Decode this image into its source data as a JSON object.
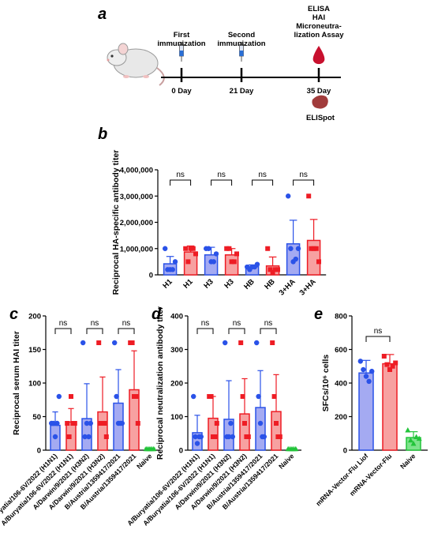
{
  "panel_labels": [
    "a",
    "b",
    "c",
    "d",
    "e"
  ],
  "timeline": {
    "events": [
      {
        "title": [
          "First",
          "immunization"
        ],
        "day": "0 Day"
      },
      {
        "title": [
          "Second",
          "immunization"
        ],
        "day": "21 Day"
      },
      {
        "title": [
          "ELISA",
          "HAI",
          "Microneutra-",
          "lization Assay"
        ],
        "day": "35 Day"
      }
    ],
    "elispot_label": "ELISpot",
    "colors": {
      "blood": "#c8102e",
      "spleen": "#a13b3b",
      "syringe": "#2a6fd6"
    }
  },
  "colors": {
    "blue": "#2a52e8",
    "blue_fill": "#a4aaf2",
    "red": "#ee1c24",
    "red_fill": "#f7a1a1",
    "green": "#22c43a",
    "green_fill": "#7ee38c"
  },
  "chart_data": [
    {
      "id": "b",
      "type": "bar",
      "ylabel": "Reciprocal HA-specific antibody titer",
      "ylim": [
        0,
        4000000
      ],
      "yticks": [
        0,
        1000000,
        2000000,
        3000000,
        4000000
      ],
      "ytick_labels": [
        "0",
        "1,000,000",
        "2,000,000",
        "3,000,000",
        "4,000,000"
      ],
      "categories": [
        "H1",
        "H1",
        "H3",
        "H3",
        "HB",
        "HB",
        "3+HA",
        "3+HA"
      ],
      "colors": [
        "blue",
        "red",
        "blue",
        "red",
        "blue",
        "red",
        "blue",
        "red"
      ],
      "values": [
        420000,
        870000,
        760000,
        760000,
        310000,
        340000,
        1180000,
        1310000
      ],
      "errors": [
        280000,
        230000,
        290000,
        240000,
        70000,
        340000,
        900000,
        800000
      ],
      "points": [
        [
          1000000,
          200000,
          200000,
          200000,
          500000
        ],
        [
          1000000,
          500000,
          1000000,
          1000000,
          800000
        ],
        [
          1000000,
          1000000,
          500000,
          500000,
          800000
        ],
        [
          1000000,
          1000000,
          500000,
          500000,
          800000
        ],
        [
          300000,
          200000,
          300000,
          300000,
          400000
        ],
        [
          1000000,
          200000,
          100000,
          200000,
          200000
        ],
        [
          3000000,
          1000000,
          500000,
          600000,
          1000000
        ],
        [
          3000000,
          1000000,
          1000000,
          1000000,
          500000
        ]
      ],
      "comparisons": [
        {
          "pair": [
            0,
            1
          ],
          "label": "ns"
        },
        {
          "pair": [
            2,
            3
          ],
          "label": "ns"
        },
        {
          "pair": [
            4,
            5
          ],
          "label": "ns"
        },
        {
          "pair": [
            6,
            7
          ],
          "label": "ns"
        }
      ]
    },
    {
      "id": "c",
      "type": "bar",
      "ylabel": "Reciprocal serum HAI titer",
      "ylim": [
        0,
        200
      ],
      "yticks": [
        0,
        50,
        100,
        150,
        200
      ],
      "ytick_labels": [
        "0",
        "50",
        "100",
        "150",
        "200"
      ],
      "categories": [
        "A/Buryatia/106-6V/2022 (H1N1)",
        "A/Buryatia/106-6V/2022 (H1N1)",
        "A/Darwin/9/2021 (H3N2)",
        "A/Darwin/9/2021 (H3N2)",
        "B/Austria/1359417/2021",
        "B/Austria/1359417/2021",
        "Naive"
      ],
      "colors": [
        "blue",
        "red",
        "blue",
        "red",
        "blue",
        "red",
        "green"
      ],
      "values": [
        37,
        42,
        47,
        57,
        70,
        90,
        3
      ],
      "errors": [
        20,
        20,
        52,
        52,
        50,
        58,
        0
      ],
      "points": [
        [
          40,
          40,
          20,
          40,
          80
        ],
        [
          40,
          20,
          80,
          40,
          40
        ],
        [
          160,
          20,
          40,
          20,
          40
        ],
        [
          160,
          40,
          40,
          40,
          20
        ],
        [
          160,
          80,
          40,
          40,
          40
        ],
        [
          160,
          160,
          80,
          80,
          40
        ],
        [
          2,
          2,
          2,
          2,
          2
        ]
      ],
      "comparisons": [
        {
          "pair": [
            0,
            1
          ],
          "label": "ns"
        },
        {
          "pair": [
            2,
            3
          ],
          "label": "ns"
        },
        {
          "pair": [
            4,
            5
          ],
          "label": "ns"
        }
      ]
    },
    {
      "id": "d",
      "type": "bar",
      "ylabel": "Reciprocal neutralization antibody titer",
      "ylim": [
        0,
        400
      ],
      "yticks": [
        0,
        100,
        200,
        300,
        400
      ],
      "ytick_labels": [
        "0",
        "100",
        "200",
        "300",
        "400"
      ],
      "categories": [
        "A/Buryatia/106-6V/2022 (H1N1)",
        "A/Buryatia/106-6V/2022 (H1N1)",
        "A/Darwin/9/2021 (H3N2)",
        "A/Darwin/9/2021 (H3N2)",
        "B/Austria/1359417/2021",
        "B/Austria/1359417/2021",
        "Naive"
      ],
      "colors": [
        "blue",
        "red",
        "blue",
        "red",
        "blue",
        "red",
        "green"
      ],
      "values": [
        52,
        95,
        92,
        108,
        127,
        115,
        4
      ],
      "errors": [
        52,
        65,
        115,
        105,
        110,
        110,
        0
      ],
      "points": [
        [
          160,
          40,
          20,
          40,
          40
        ],
        [
          160,
          160,
          40,
          40,
          80
        ],
        [
          320,
          40,
          40,
          80,
          40
        ],
        [
          320,
          160,
          80,
          40,
          40
        ],
        [
          320,
          160,
          80,
          40,
          40
        ],
        [
          320,
          160,
          80,
          40,
          40
        ],
        [
          4,
          4,
          4,
          4,
          4
        ]
      ],
      "comparisons": [
        {
          "pair": [
            0,
            1
          ],
          "label": "ns"
        },
        {
          "pair": [
            2,
            3
          ],
          "label": "ns"
        },
        {
          "pair": [
            4,
            5
          ],
          "label": "ns"
        }
      ]
    },
    {
      "id": "e",
      "type": "bar",
      "ylabel": "SFCs/10⁶ cells",
      "ylim": [
        0,
        800
      ],
      "yticks": [
        0,
        200,
        400,
        600,
        800
      ],
      "ytick_labels": [
        "0",
        "200",
        "400",
        "600",
        "800"
      ],
      "categories": [
        "mRNA-Vector-Flu Liof",
        "mRNA-Vector-Flu",
        "Naive"
      ],
      "colors": [
        "blue",
        "red",
        "green"
      ],
      "values": [
        460,
        515,
        75
      ],
      "errors": [
        75,
        55,
        35
      ],
      "points": [
        [
          530,
          480,
          440,
          410,
          470
        ],
        [
          560,
          510,
          480,
          500,
          520
        ],
        [
          120,
          60,
          40,
          80,
          70
        ]
      ],
      "comparisons": [
        {
          "pair": [
            0,
            1
          ],
          "label": "ns"
        }
      ]
    }
  ]
}
